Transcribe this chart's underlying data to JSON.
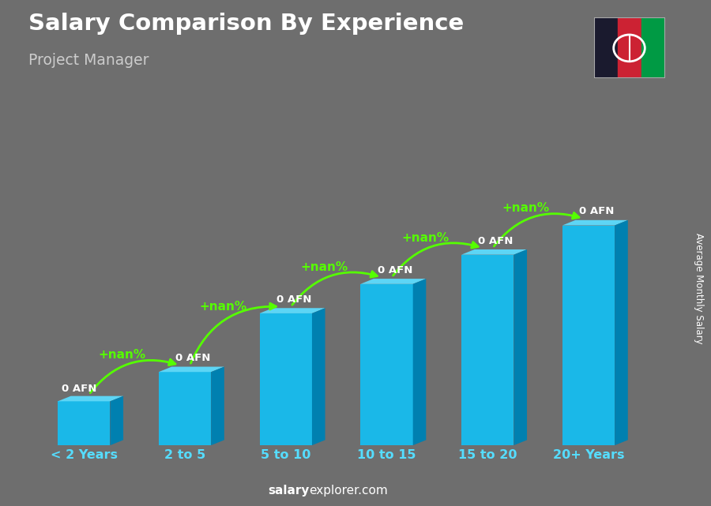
{
  "title": "Salary Comparison By Experience",
  "subtitle": "Project Manager",
  "ylabel": "Average Monthly Salary",
  "watermark_bold": "salary",
  "watermark_normal": "explorer.com",
  "categories": [
    "< 2 Years",
    "2 to 5",
    "5 to 10",
    "10 to 15",
    "15 to 20",
    "20+ Years"
  ],
  "values": [
    1.5,
    2.5,
    4.5,
    5.5,
    6.5,
    7.5
  ],
  "bar_color_front": "#1ab8e8",
  "bar_color_top": "#5dd5f5",
  "bar_color_side": "#0080b0",
  "bar_labels": [
    "0 AFN",
    "0 AFN",
    "0 AFN",
    "0 AFN",
    "0 AFN",
    "0 AFN"
  ],
  "pct_labels": [
    "+nan%",
    "+nan%",
    "+nan%",
    "+nan%",
    "+nan%"
  ],
  "bg_color": "#6e6e6e",
  "title_color": "#ffffff",
  "subtitle_color": "#cccccc",
  "label_color": "#ffffff",
  "pct_color": "#55ff00",
  "tick_color": "#55ddff",
  "arrow_color": "#55ff00",
  "flag_colors": [
    "#1a1a2e",
    "#cc2233",
    "#009a44"
  ],
  "ylabel_color": "#ffffff"
}
